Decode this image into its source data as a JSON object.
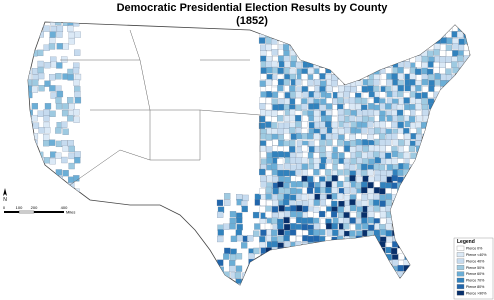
{
  "title": "Democratic Presidential Election Results by County",
  "subtitle": "(1852)",
  "north_arrow": "N",
  "scale_bar": {
    "labels": [
      "0",
      "100",
      "200",
      "400"
    ],
    "unit": "Miles"
  },
  "legend": {
    "title": "Legend",
    "entries": [
      {
        "label": "Pierce 0%",
        "color": "#ffffff"
      },
      {
        "label": "Pierce <40%",
        "color": "#dbe9f6"
      },
      {
        "label": "Pierce 40%",
        "color": "#c6dbef"
      },
      {
        "label": "Pierce 50%",
        "color": "#9ecae1"
      },
      {
        "label": "Pierce 60%",
        "color": "#6baed6"
      },
      {
        "label": "Pierce 70%",
        "color": "#3182bd"
      },
      {
        "label": "Pierce 80%",
        "color": "#2166ac"
      },
      {
        "label": "Pierce >90%",
        "color": "#08306b"
      }
    ]
  }
}
